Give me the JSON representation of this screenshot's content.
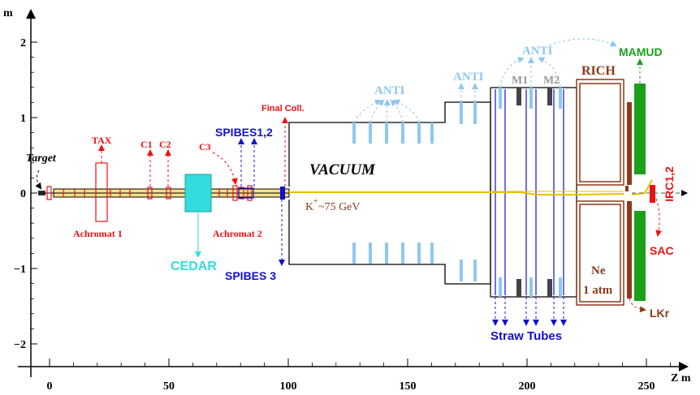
{
  "axes": {
    "y_unit": "m",
    "x_unit": "Z  m",
    "x_ticks": [
      "0",
      "50",
      "100",
      "150",
      "200",
      "250"
    ],
    "y_ticks": [
      "2",
      "1",
      "0",
      "−1",
      "−2"
    ]
  },
  "labels": {
    "target": "Target",
    "tax": "TAX",
    "c1": "C1",
    "c2": "C2",
    "c3": "C3",
    "achromat1": "Achromat 1",
    "achromat2": "Achromat 2",
    "cedar": "CEDAR",
    "spibes12": "SPIBES1,2",
    "spibes3": "SPIBES 3",
    "final_coll": "Final Coll.",
    "vacuum": "VACUUM",
    "beam_k": "K",
    "beam_plus": "+",
    "beam_energy": "~75 GeV",
    "anti_1": "ANTI",
    "anti_2": "ANTI",
    "anti_3": "ANTI",
    "m1": "M1",
    "m2": "M2",
    "rich": "RICH",
    "ne": "Ne",
    "ne_pressure": "1 atm",
    "mamud": "MAMUD",
    "irc": "IRC1,2",
    "sac": "SAC",
    "lkr": "LKr",
    "straw_tubes": "Straw Tubes"
  },
  "colors": {
    "red": "#ee1111",
    "blue": "#1111cc",
    "cyan": "#33dddd",
    "light_blue": "#8ec8f0",
    "brown": "#8b3a1a",
    "green": "#1aa01a",
    "gray": "#999999",
    "beam": "#e8c000",
    "beamline": "#f5e08a",
    "black": "#000000"
  }
}
